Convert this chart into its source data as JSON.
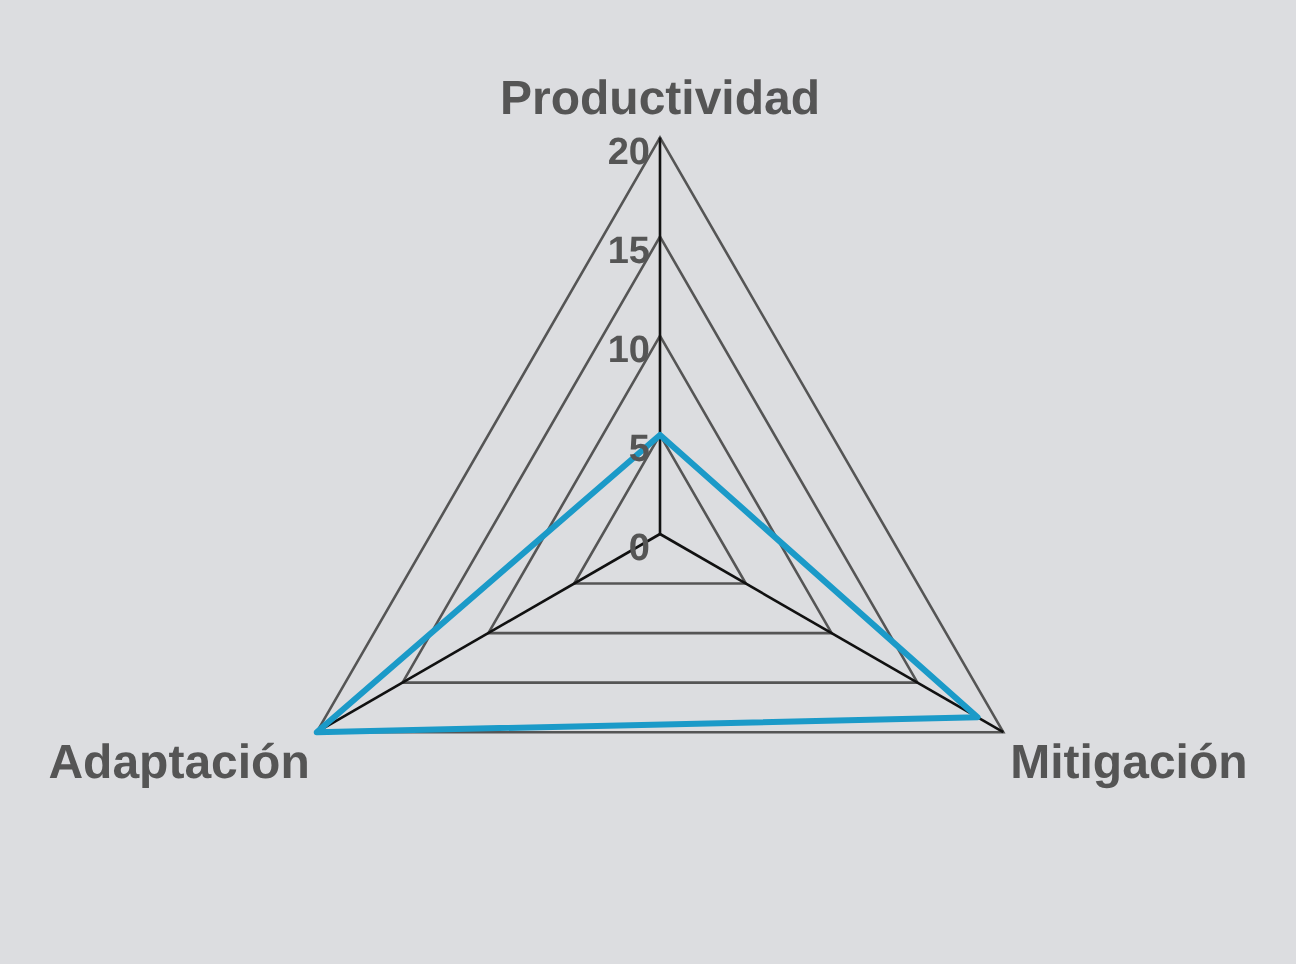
{
  "chart_data": {
    "type": "radar",
    "categories": [
      "Productividad",
      "Mitigación",
      "Adaptación"
    ],
    "series": [
      {
        "color": "#1b9ac8",
        "values": [
          5,
          18.5,
          20
        ]
      }
    ],
    "ylim": [
      0,
      20
    ],
    "yticks": [
      0,
      5,
      10,
      15,
      20
    ],
    "grid": true,
    "legend": false,
    "marker": "none"
  }
}
